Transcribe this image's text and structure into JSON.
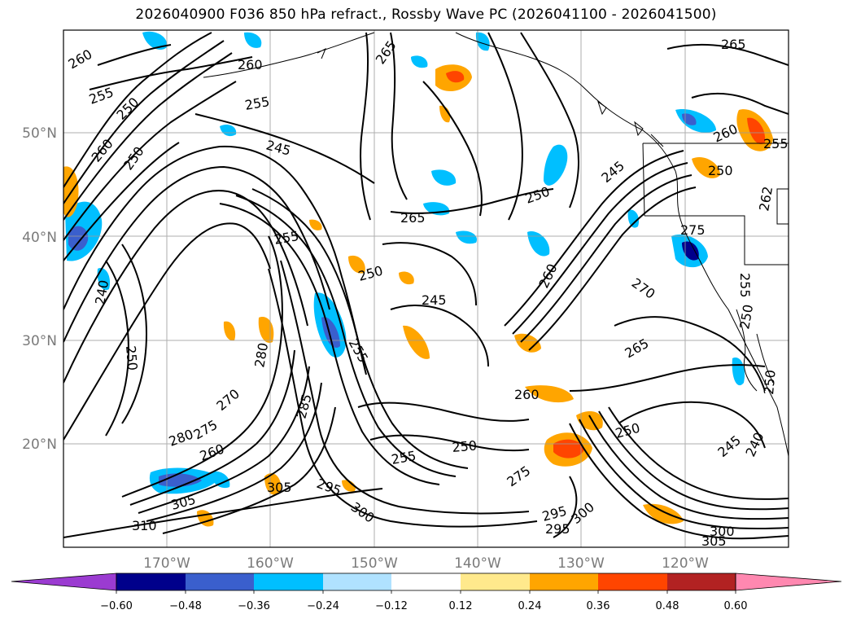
{
  "title": "2026040900 F036 850 hPa refract., Rossby Wave PC (2026041100 - 2026041500)",
  "map": {
    "projection": "plate-carree",
    "lon_range": [
      -178,
      -108
    ],
    "lat_range": [
      10,
      60
    ],
    "grid_interval_deg": 10,
    "lat_labels": [
      "50°N",
      "40°N",
      "30°N",
      "20°N"
    ],
    "lon_labels": [
      "170°W",
      "160°W",
      "150°W",
      "140°W",
      "130°W",
      "120°W"
    ],
    "contour_labels": [
      "260",
      "255",
      "250",
      "265",
      "260",
      "255",
      "245",
      "265",
      "255",
      "250",
      "250",
      "245",
      "255",
      "260",
      "250",
      "245",
      "270",
      "265",
      "275",
      "260",
      "250",
      "280",
      "275",
      "260",
      "270",
      "285",
      "255",
      "250",
      "295",
      "305",
      "300",
      "310",
      "305",
      "295",
      "275",
      "295",
      "300",
      "305",
      "300",
      "240",
      "250",
      "255",
      "250",
      "250",
      "245",
      "240",
      "260",
      "280",
      "260",
      "265",
      "255",
      "262",
      "250"
    ],
    "shaded_field": "Rossby Wave PC"
  },
  "colorbar": {
    "ticks": [
      "−0.60",
      "−0.48",
      "−0.36",
      "−0.24",
      "−0.12",
      "0.12",
      "0.24",
      "0.36",
      "0.48",
      "0.60"
    ],
    "colors": [
      "#9b3bd1",
      "#00008b",
      "#3a5fcd",
      "#00bfff",
      "#b0e2ff",
      "#ffffff",
      "#ffe98c",
      "#ffa500",
      "#ff4500",
      "#b22222",
      "#ff88b0"
    ]
  }
}
